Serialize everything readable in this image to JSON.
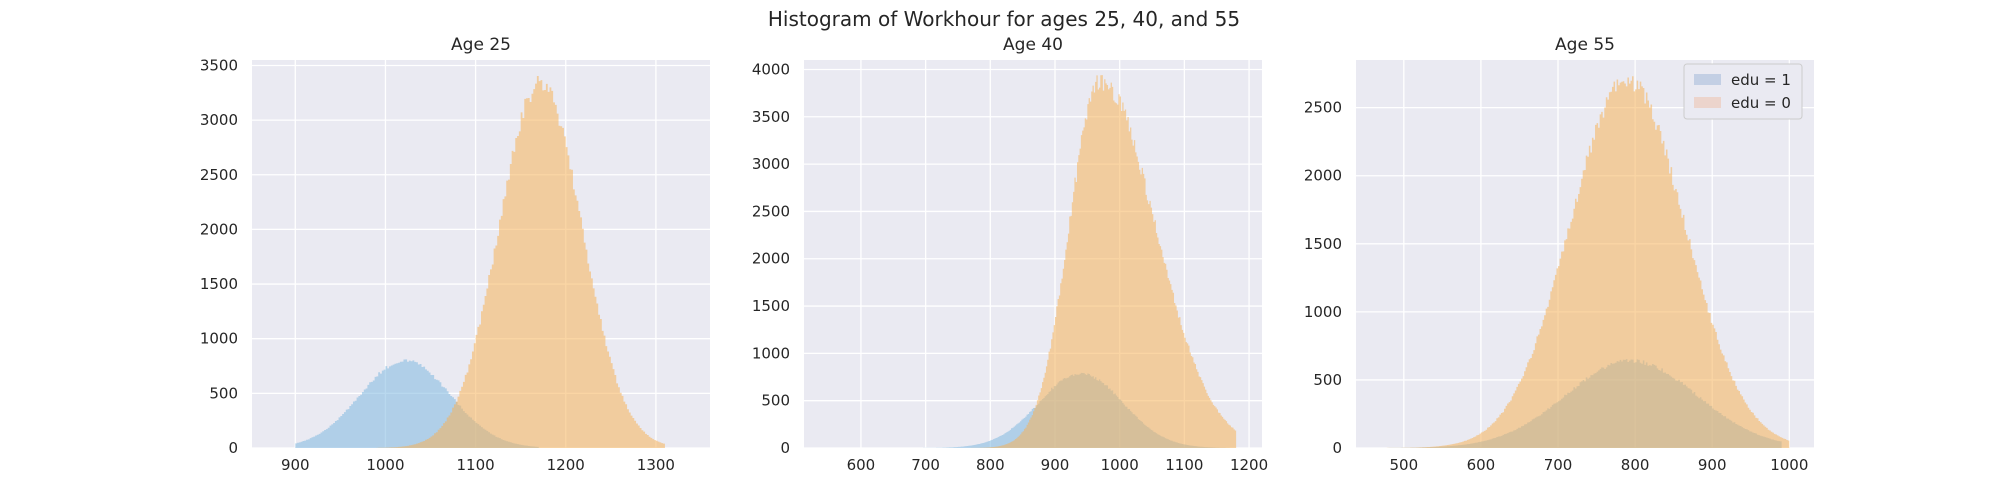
{
  "figure": {
    "title": "Histogram of Workhour for ages 25, 40, and 55"
  },
  "colors": {
    "background": "#eaeaf2",
    "grid": "#ffffff",
    "edu1": "#7fb8e0",
    "edu0": "#f5b25a",
    "overlap": "#c2b48d",
    "text": "#262626"
  },
  "legend": {
    "placement": "upper right of third panel",
    "entries": [
      {
        "label": "edu = 1",
        "color": "#c3cfe4"
      },
      {
        "label": "edu = 0",
        "color": "#ecd4cc"
      }
    ]
  },
  "chart_data": [
    {
      "type": "histogram",
      "title": "Age 25",
      "xlim": [
        852,
        1360
      ],
      "ylim": [
        0,
        3550
      ],
      "xticks": [
        900,
        1000,
        1100,
        1200,
        1300
      ],
      "yticks": [
        0,
        500,
        1000,
        1500,
        2000,
        2500,
        3000,
        3500
      ],
      "grid": true,
      "series": [
        {
          "name": "edu = 1",
          "shape": "gaussian",
          "mean": 1022,
          "peak_count": 800,
          "sd": 50,
          "x_min": 900,
          "x_max": 1170
        },
        {
          "name": "edu = 0",
          "shape": "gaussian",
          "mean": 1172,
          "peak_count": 3340,
          "sd": 46,
          "x_min": 990,
          "x_max": 1310
        }
      ]
    },
    {
      "type": "histogram",
      "title": "Age 40",
      "xlim": [
        512,
        1220
      ],
      "ylim": [
        0,
        4100
      ],
      "xticks": [
        600,
        700,
        800,
        900,
        1000,
        1100,
        1200
      ],
      "yticks": [
        0,
        500,
        1000,
        1500,
        2000,
        2500,
        3000,
        3500,
        4000
      ],
      "grid": true,
      "series": [
        {
          "name": "edu = 1",
          "shape": "gaussian",
          "mean": 940,
          "peak_count": 790,
          "sd": 65,
          "x_min": 520,
          "x_max": 1170
        },
        {
          "name": "edu = 0",
          "shape": "skewed",
          "mean": 970,
          "peak_count": 3880,
          "sd_left": 48,
          "sd_right": 85,
          "x_min": 560,
          "x_max": 1180
        }
      ]
    },
    {
      "type": "histogram",
      "title": "Age 55",
      "xlim": [
        438,
        1032
      ],
      "ylim": [
        0,
        2850
      ],
      "xticks": [
        500,
        600,
        700,
        800,
        900,
        1000
      ],
      "yticks": [
        0,
        500,
        1000,
        1500,
        2000,
        2500
      ],
      "grid": true,
      "series": [
        {
          "name": "edu = 1",
          "shape": "gaussian",
          "mean": 795,
          "peak_count": 640,
          "sd": 85,
          "x_min": 480,
          "x_max": 990
        },
        {
          "name": "edu = 0",
          "shape": "gaussian",
          "mean": 790,
          "peak_count": 2700,
          "sd": 75,
          "x_min": 470,
          "x_max": 1000
        }
      ]
    }
  ]
}
